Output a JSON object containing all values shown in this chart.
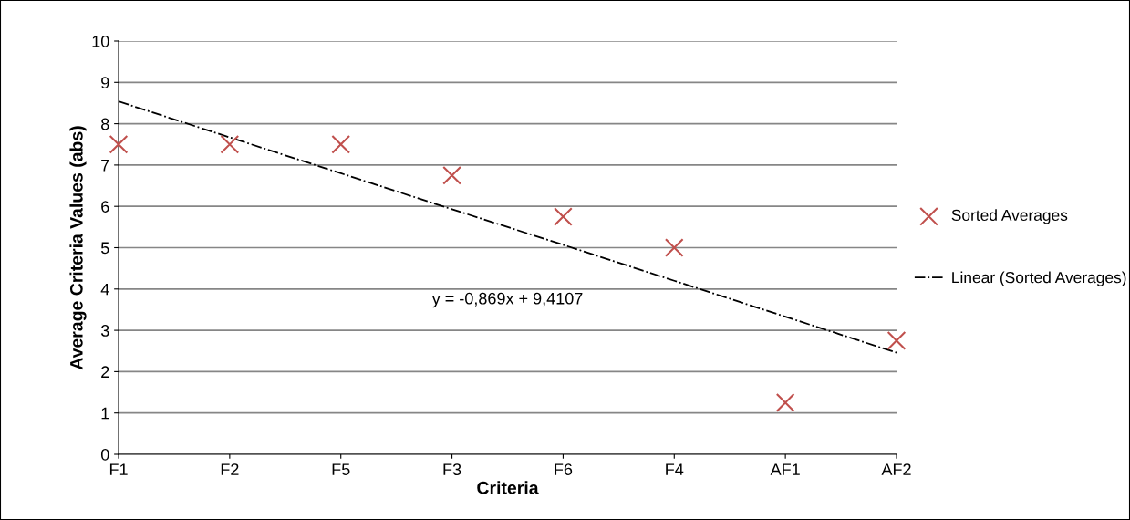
{
  "chart_data": {
    "type": "scatter",
    "xlabel": "Criteria",
    "ylabel": "Average Criteria Values (abs)",
    "categories": [
      "F1",
      "F2",
      "F5",
      "F3",
      "F6",
      "F4",
      "AF1",
      "AF2"
    ],
    "series": [
      {
        "name": "Sorted Averages",
        "color": "#c0504d",
        "marker": "cross",
        "values": [
          7.5,
          7.5,
          7.5,
          6.75,
          5.75,
          5,
          1.25,
          2.75
        ]
      },
      {
        "name": "Linear (Sorted Averages)",
        "type": "line",
        "color": "#000000",
        "marker": "none",
        "line_style": "dashdot",
        "values": [
          8.54,
          7.67,
          6.8,
          5.93,
          5.07,
          4.2,
          3.33,
          2.46
        ]
      }
    ],
    "annotations": [
      "y = -0,869x + 9,4107"
    ],
    "ylim": [
      0,
      10
    ],
    "yticks": [
      0,
      1,
      2,
      3,
      4,
      5,
      6,
      7,
      8,
      9,
      10
    ],
    "grid": "y",
    "legend": "right"
  }
}
